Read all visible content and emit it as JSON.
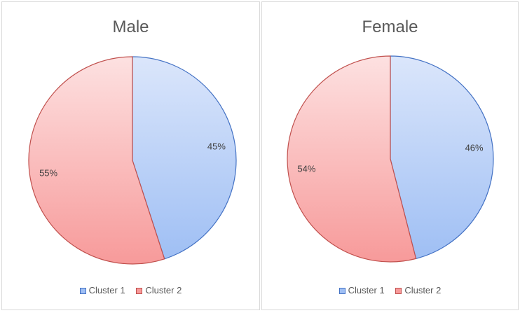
{
  "chart_data": [
    {
      "type": "pie",
      "title": "Male",
      "categories": [
        "Cluster 1",
        "Cluster 2"
      ],
      "values": [
        45,
        55
      ],
      "labels": [
        "45%",
        "55%"
      ],
      "legend": "bottom"
    },
    {
      "type": "pie",
      "title": "Female",
      "categories": [
        "Cluster 1",
        "Cluster 2"
      ],
      "values": [
        46,
        54
      ],
      "labels": [
        "46%",
        "54%"
      ],
      "legend": "bottom"
    }
  ],
  "colors": {
    "cluster1_fill_top": "#dbe6fb",
    "cluster1_fill_bottom": "#9fbff4",
    "cluster1_stroke": "#4472c4",
    "cluster2_fill_top": "#fde1e1",
    "cluster2_fill_bottom": "#f79a9a",
    "cluster2_stroke": "#c0504d"
  }
}
